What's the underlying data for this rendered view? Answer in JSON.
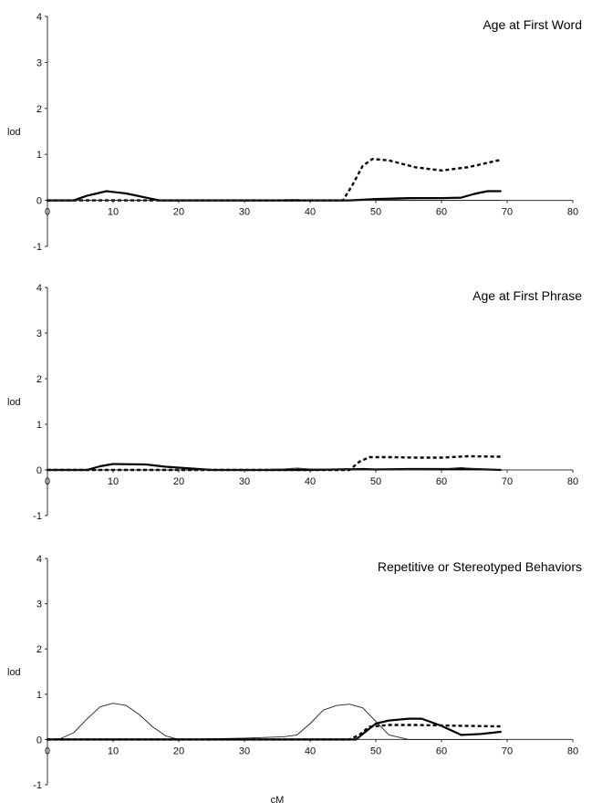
{
  "chart_data": [
    {
      "type": "line",
      "title": "Age at First Word",
      "ylabel": "lod",
      "xlabel": "",
      "xlim": [
        0,
        80
      ],
      "ylim": [
        -1,
        4
      ],
      "xticks": [
        0,
        10,
        20,
        30,
        40,
        50,
        60,
        70,
        80
      ],
      "yticks": [
        -1,
        0,
        1,
        2,
        3,
        4
      ],
      "series": [
        {
          "style": "solid-thick",
          "x": [
            0,
            4,
            6,
            9,
            12,
            15,
            17,
            20,
            30,
            40,
            46,
            50,
            55,
            60,
            63,
            65,
            67,
            69
          ],
          "y": [
            0,
            0,
            0.1,
            0.2,
            0.15,
            0.06,
            0,
            0,
            0,
            0,
            0,
            0.03,
            0.05,
            0.05,
            0.06,
            0.14,
            0.2,
            0.2
          ]
        },
        {
          "style": "dashed",
          "x": [
            0,
            10,
            20,
            30,
            40,
            45,
            46.5,
            48,
            49.5,
            52,
            56,
            60,
            64,
            69
          ],
          "y": [
            0,
            0,
            0,
            0,
            0,
            0,
            0.35,
            0.75,
            0.9,
            0.87,
            0.72,
            0.65,
            0.72,
            0.88
          ]
        },
        {
          "style": "solid-thin",
          "x": [
            0,
            10,
            20,
            30,
            38,
            40,
            50,
            60,
            69
          ],
          "y": [
            0,
            0,
            0,
            0,
            0.02,
            0,
            0.01,
            0,
            0
          ]
        }
      ]
    },
    {
      "type": "line",
      "title": "Age at First Phrase",
      "ylabel": "lod",
      "xlabel": "",
      "xlim": [
        0,
        80
      ],
      "ylim": [
        -1,
        4
      ],
      "xticks": [
        0,
        10,
        20,
        30,
        40,
        50,
        60,
        70,
        80
      ],
      "yticks": [
        -1,
        0,
        1,
        2,
        3,
        4
      ],
      "series": [
        {
          "style": "solid-thick",
          "x": [
            0,
            6,
            8,
            10,
            15,
            18,
            22,
            25,
            30,
            40,
            48,
            50,
            55,
            60,
            65,
            69
          ],
          "y": [
            0,
            0,
            0.08,
            0.13,
            0.12,
            0.07,
            0.03,
            0,
            0,
            0,
            0.02,
            0.01,
            0.02,
            0.02,
            0.02,
            0
          ]
        },
        {
          "style": "dashed",
          "x": [
            0,
            10,
            20,
            30,
            40,
            46,
            47.5,
            49,
            52,
            56,
            60,
            64,
            69
          ],
          "y": [
            0,
            0,
            0,
            0,
            0,
            0,
            0.18,
            0.28,
            0.28,
            0.27,
            0.27,
            0.3,
            0.29
          ]
        },
        {
          "style": "solid-thin",
          "x": [
            0,
            10,
            20,
            30,
            36,
            38,
            40,
            50,
            60,
            63,
            66,
            69
          ],
          "y": [
            0,
            0,
            0,
            0,
            0.02,
            0.04,
            0.02,
            0,
            0.02,
            0.05,
            0.02,
            0
          ]
        }
      ]
    },
    {
      "type": "line",
      "title": "Repetitive or Stereotyped Behaviors",
      "ylabel": "lod",
      "xlabel": "cM",
      "xlim": [
        0,
        80
      ],
      "ylim": [
        -1,
        4
      ],
      "xticks": [
        0,
        10,
        20,
        30,
        40,
        50,
        60,
        70,
        80
      ],
      "yticks": [
        -1,
        0,
        1,
        2,
        3,
        4
      ],
      "series": [
        {
          "style": "solid-thin",
          "x": [
            0,
            2,
            4,
            6,
            8,
            10,
            12,
            14,
            16,
            18,
            20,
            30,
            36,
            38,
            40,
            42,
            44,
            46,
            48,
            50,
            52,
            55,
            60,
            69
          ],
          "y": [
            0,
            0.02,
            0.15,
            0.45,
            0.72,
            0.8,
            0.75,
            0.55,
            0.28,
            0.08,
            0,
            0.03,
            0.06,
            0.1,
            0.35,
            0.65,
            0.75,
            0.78,
            0.7,
            0.4,
            0.1,
            0,
            0,
            0
          ]
        },
        {
          "style": "solid-thick",
          "x": [
            0,
            10,
            20,
            30,
            40,
            47,
            48,
            50,
            52,
            55,
            57,
            60,
            63,
            66,
            69
          ],
          "y": [
            0,
            0,
            0,
            0,
            0,
            0,
            0.12,
            0.35,
            0.42,
            0.46,
            0.46,
            0.3,
            0.1,
            0.12,
            0.17
          ]
        },
        {
          "style": "dashed",
          "x": [
            0,
            10,
            20,
            30,
            40,
            46,
            47.5,
            49,
            52,
            56,
            60,
            64,
            69
          ],
          "y": [
            0,
            0,
            0,
            0,
            0,
            0,
            0.1,
            0.28,
            0.32,
            0.32,
            0.31,
            0.3,
            0.29
          ]
        }
      ]
    }
  ]
}
